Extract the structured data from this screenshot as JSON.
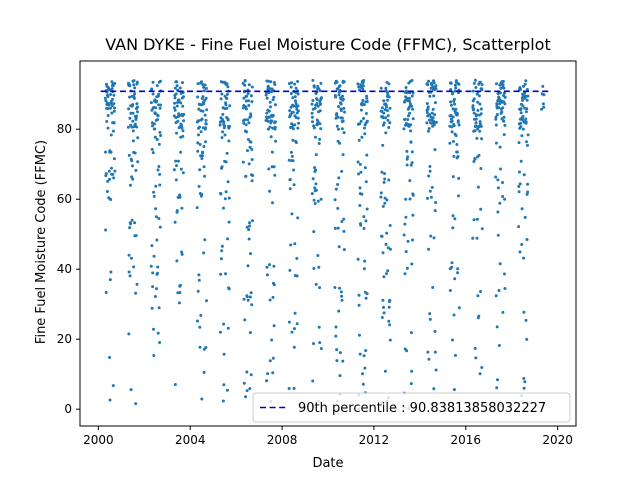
{
  "chart_data": {
    "type": "scatter",
    "title": "VAN DYKE - Fine Fuel Moisture Code (FFMC), Scatterplot",
    "xlabel": "Date",
    "ylabel": "Fine Fuel Moisture Code (FFMC)",
    "xlim": [
      1999.2,
      2020.8
    ],
    "ylim": [
      -4.8,
      99.5
    ],
    "xticks": [
      2000,
      2004,
      2008,
      2012,
      2016,
      2020
    ],
    "yticks": [
      0,
      20,
      40,
      60,
      80
    ],
    "grid": false,
    "legend_position": "bottom-right",
    "point_color": "#1f77b4",
    "reference_line": {
      "value": 90.83813858032227,
      "label": "90th percentile : 90.83813858032227",
      "color": "#0000cc",
      "style": "dashed"
    },
    "seasons": [
      {
        "year": 2000,
        "start": 2000.3,
        "end": 2000.72
      },
      {
        "year": 2001,
        "start": 2001.3,
        "end": 2001.72
      },
      {
        "year": 2002,
        "start": 2002.3,
        "end": 2002.72
      },
      {
        "year": 2003,
        "start": 2003.3,
        "end": 2003.72
      },
      {
        "year": 2004,
        "start": 2004.3,
        "end": 2004.72
      },
      {
        "year": 2005,
        "start": 2005.3,
        "end": 2005.72
      },
      {
        "year": 2006,
        "start": 2006.3,
        "end": 2006.72
      },
      {
        "year": 2007,
        "start": 2007.3,
        "end": 2007.72
      },
      {
        "year": 2008,
        "start": 2008.3,
        "end": 2008.72
      },
      {
        "year": 2009,
        "start": 2009.3,
        "end": 2009.72
      },
      {
        "year": 2010,
        "start": 2010.3,
        "end": 2010.72
      },
      {
        "year": 2011,
        "start": 2011.3,
        "end": 2011.72
      },
      {
        "year": 2012,
        "start": 2012.3,
        "end": 2012.72
      },
      {
        "year": 2013,
        "start": 2013.3,
        "end": 2013.72
      },
      {
        "year": 2014,
        "start": 2014.3,
        "end": 2014.72
      },
      {
        "year": 2015,
        "start": 2015.3,
        "end": 2015.72
      },
      {
        "year": 2016,
        "start": 2016.3,
        "end": 2016.72
      },
      {
        "year": 2017,
        "start": 2017.3,
        "end": 2017.72
      },
      {
        "year": 2018,
        "start": 2018.3,
        "end": 2018.72
      },
      {
        "year": 2019,
        "start": 2019.3,
        "end": 2019.42
      }
    ]
  }
}
